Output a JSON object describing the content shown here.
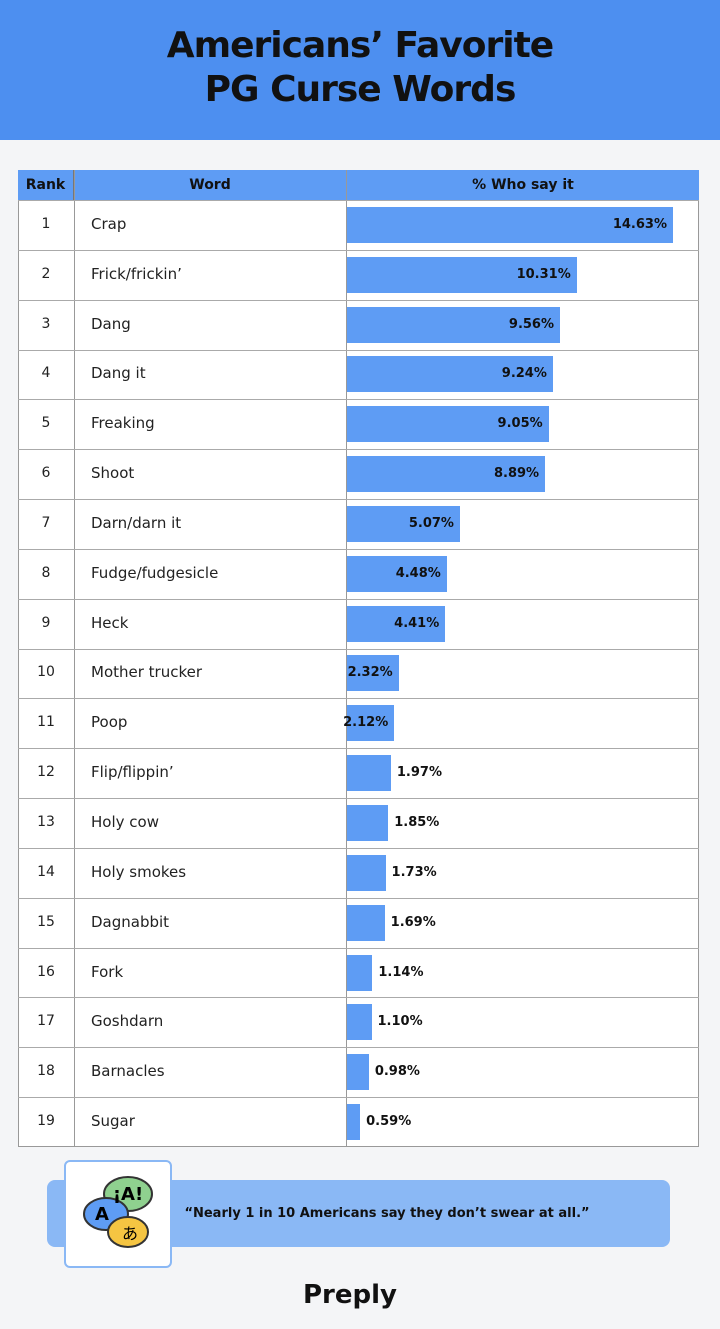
{
  "chart_data": {
    "type": "bar",
    "orientation": "horizontal",
    "title": "Americans’ Favorite PG Curse Words",
    "columns": [
      "Rank",
      "Word",
      "% Who say it"
    ],
    "ranks": [
      "1",
      "2",
      "3",
      "4",
      "5",
      "6",
      "7",
      "8",
      "9",
      "10",
      "11",
      "12",
      "13",
      "14",
      "15",
      "16",
      "17",
      "18",
      "19"
    ],
    "categories": [
      "Crap",
      "Frick/frickin’",
      "Dang",
      "Dang it",
      "Freaking",
      "Shoot",
      "Darn/darn it",
      "Fudge/fudgesicle",
      "Heck",
      "Mother trucker",
      "Poop",
      "Flip/flippin’",
      "Holy cow",
      "Holy smokes",
      "Dagnabbit",
      "Fork",
      "Goshdarn",
      "Barnacles",
      "Sugar"
    ],
    "values": [
      14.63,
      10.31,
      9.56,
      9.24,
      9.05,
      8.89,
      5.07,
      4.48,
      4.41,
      2.32,
      2.12,
      1.97,
      1.85,
      1.73,
      1.69,
      1.14,
      1.1,
      0.98,
      0.59
    ],
    "value_labels": [
      "14.63%",
      "10.31%",
      "9.56%",
      "9.24%",
      "9.05%",
      "8.89%",
      "5.07%",
      "4.48%",
      "4.41%",
      "2.32%",
      "2.12%",
      "1.97%",
      "1.85%",
      "1.73%",
      "1.69%",
      "1.14%",
      "1.10%",
      "0.98%",
      "0.59%"
    ],
    "color": "#5e9cf4",
    "quote": "“Nearly 1 in 10 Americans say they don’t swear at all.”",
    "icon_texts": [
      "¡A!",
      "A",
      "あ"
    ],
    "brand": "Preply"
  }
}
